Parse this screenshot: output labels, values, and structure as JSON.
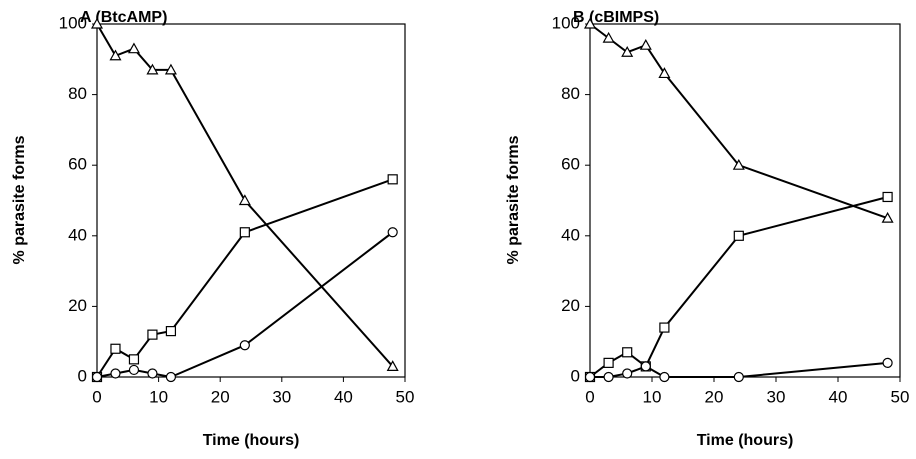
{
  "chart_data": [
    {
      "type": "line",
      "title": "A (BtcAMP)",
      "x_label": "Time (hours)",
      "y_label": "% parasite forms",
      "x": [
        0,
        3,
        6,
        9,
        12,
        24,
        48
      ],
      "series": [
        {
          "marker": "triangle",
          "color": "#000000",
          "values": [
            100,
            91,
            93,
            87,
            87,
            50,
            3
          ]
        },
        {
          "marker": "square",
          "color": "#000000",
          "values": [
            0,
            8,
            5,
            12,
            13,
            41,
            56
          ]
        },
        {
          "marker": "circle",
          "color": "#000000",
          "values": [
            0,
            1,
            2,
            1,
            0,
            9,
            41
          ]
        }
      ],
      "xlim": [
        0,
        50
      ],
      "xticks": [
        0,
        10,
        20,
        30,
        40,
        50
      ],
      "ylim": [
        0,
        100
      ],
      "yticks": [
        0,
        20,
        40,
        60,
        80,
        100
      ]
    },
    {
      "type": "line",
      "title": "B (cBIMPS)",
      "x_label": "Time (hours)",
      "y_label": "% parasite forms",
      "x": [
        0,
        3,
        6,
        9,
        12,
        24,
        48
      ],
      "series": [
        {
          "marker": "triangle",
          "color": "#000000",
          "values": [
            100,
            96,
            92,
            94,
            86,
            60,
            45
          ]
        },
        {
          "marker": "square",
          "color": "#000000",
          "values": [
            0,
            4,
            7,
            3,
            14,
            40,
            51
          ]
        },
        {
          "marker": "circle",
          "color": "#000000",
          "values": [
            0,
            0,
            1,
            3,
            0,
            0,
            4
          ]
        }
      ],
      "xlim": [
        0,
        50
      ],
      "xticks": [
        0,
        10,
        20,
        30,
        40,
        50
      ],
      "ylim": [
        0,
        100
      ],
      "yticks": [
        0,
        20,
        40,
        60,
        80,
        100
      ]
    }
  ]
}
